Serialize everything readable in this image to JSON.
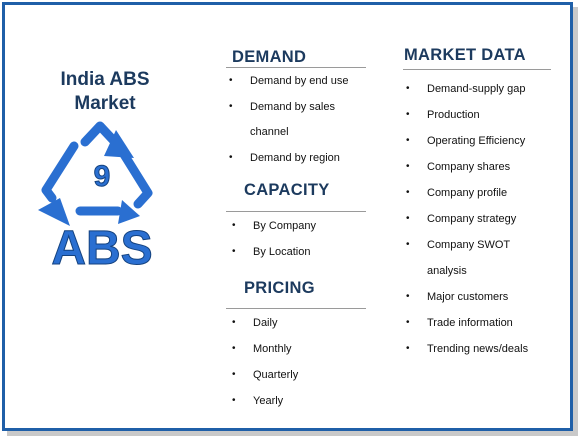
{
  "title": [
    "India ABS",
    "Market"
  ],
  "logo": {
    "number": "9",
    "text": "ABS",
    "color": "#2a6fd1"
  },
  "sections": {
    "demand": {
      "heading": "DEMAND",
      "items": [
        "Demand by end use",
        "Demand by sales",
        "channel",
        "Demand by region"
      ]
    },
    "capacity": {
      "heading": "CAPACITY",
      "items": [
        "By Company",
        "By Location"
      ]
    },
    "pricing": {
      "heading": "PRICING",
      "items": [
        "Daily",
        "Monthly",
        "Quarterly",
        "Yearly"
      ]
    },
    "market_data": {
      "heading": "MARKET DATA",
      "items": [
        "Demand-supply gap",
        "Production",
        "Operating Efficiency",
        "Company shares",
        "Company profile",
        "Company strategy",
        "Company SWOT",
        "analysis",
        "Major customers",
        "Trade information",
        "Trending news/deals"
      ]
    }
  },
  "colors": {
    "border": "#1f5fa8",
    "heading": "#1c3a5e"
  }
}
